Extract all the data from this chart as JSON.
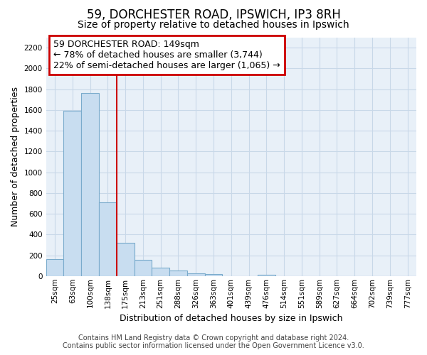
{
  "title": "59, DORCHESTER ROAD, IPSWICH, IP3 8RH",
  "subtitle": "Size of property relative to detached houses in Ipswich",
  "xlabel": "Distribution of detached houses by size in Ipswich",
  "ylabel": "Number of detached properties",
  "bar_labels": [
    "25sqm",
    "63sqm",
    "100sqm",
    "138sqm",
    "175sqm",
    "213sqm",
    "251sqm",
    "288sqm",
    "326sqm",
    "363sqm",
    "401sqm",
    "439sqm",
    "476sqm",
    "514sqm",
    "551sqm",
    "589sqm",
    "627sqm",
    "664sqm",
    "702sqm",
    "739sqm",
    "777sqm"
  ],
  "bar_values": [
    160,
    1590,
    1760,
    710,
    320,
    155,
    80,
    50,
    27,
    20,
    0,
    0,
    15,
    0,
    0,
    0,
    0,
    0,
    0,
    0,
    0
  ],
  "bar_color": "#c8ddf0",
  "bar_edge_color": "#7aabcc",
  "vline_color": "#cc0000",
  "annotation_line1": "59 DORCHESTER ROAD: 149sqm",
  "annotation_line2": "← 78% of detached houses are smaller (3,744)",
  "annotation_line3": "22% of semi-detached houses are larger (1,065) →",
  "annotation_box_color": "#ffffff",
  "annotation_box_edge_color": "#cc0000",
  "ylim": [
    0,
    2300
  ],
  "yticks": [
    0,
    200,
    400,
    600,
    800,
    1000,
    1200,
    1400,
    1600,
    1800,
    2000,
    2200
  ],
  "footer_line1": "Contains HM Land Registry data © Crown copyright and database right 2024.",
  "footer_line2": "Contains public sector information licensed under the Open Government Licence v3.0.",
  "grid_color": "#c8d8e8",
  "plot_bg_color": "#e8f0f8",
  "background_color": "#ffffff",
  "title_fontsize": 12,
  "subtitle_fontsize": 10,
  "xlabel_fontsize": 9,
  "ylabel_fontsize": 9,
  "tick_fontsize": 7.5,
  "annotation_fontsize": 9,
  "footer_fontsize": 7
}
